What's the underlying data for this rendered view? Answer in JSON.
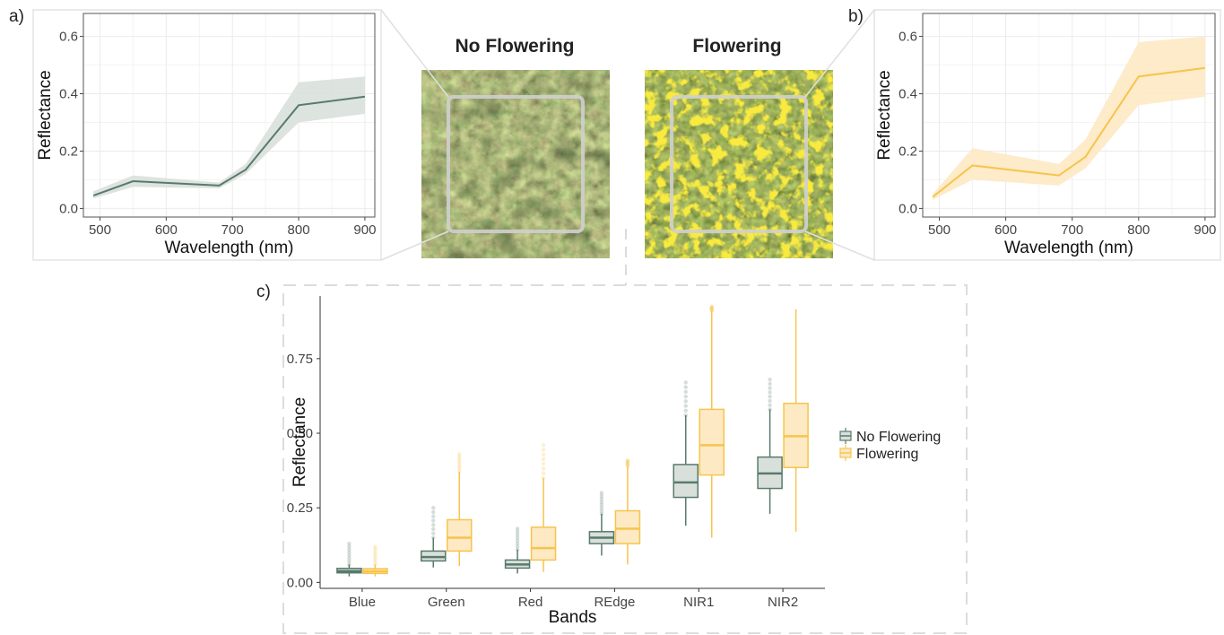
{
  "panels": {
    "a_label": "a)",
    "b_label": "b)",
    "c_label": "c)"
  },
  "photos": {
    "no_flowering_title": "No Flowering",
    "flowering_title": "Flowering"
  },
  "colors": {
    "no_flowering": "#587a6b",
    "no_flowering_fill": "#d9e0dc",
    "flowering": "#f7c44c",
    "flowering_fill": "#fde9c4",
    "grid": "#ebebeb",
    "frame": "#e4e4e4"
  },
  "chart_data": [
    {
      "id": "a",
      "type": "line",
      "xlabel": "Wavelength (nm)",
      "ylabel": "Reflectance",
      "xlim": [
        475,
        915
      ],
      "ylim": [
        -0.03,
        0.68
      ],
      "xticks": [
        500,
        600,
        700,
        800,
        900
      ],
      "xtick_labels": [
        "500",
        "600",
        "700",
        "800",
        "900"
      ],
      "yticks": [
        0.0,
        0.2,
        0.4,
        0.6
      ],
      "ytick_labels": [
        "0.0",
        "0.2",
        "0.4",
        "0.6"
      ],
      "grid": true,
      "series": [
        {
          "x": [
            490,
            550,
            680,
            720,
            800,
            900
          ],
          "y": [
            0.045,
            0.095,
            0.08,
            0.135,
            0.36,
            0.39
          ],
          "lower": [
            0.035,
            0.075,
            0.07,
            0.12,
            0.3,
            0.33
          ],
          "upper": [
            0.06,
            0.115,
            0.09,
            0.155,
            0.44,
            0.46
          ]
        }
      ]
    },
    {
      "id": "b",
      "type": "line",
      "xlabel": "Wavelength (nm)",
      "ylabel": "Reflectance",
      "xlim": [
        475,
        915
      ],
      "ylim": [
        -0.03,
        0.68
      ],
      "xticks": [
        500,
        600,
        700,
        800,
        900
      ],
      "xtick_labels": [
        "500",
        "600",
        "700",
        "800",
        "900"
      ],
      "yticks": [
        0.0,
        0.2,
        0.4,
        0.6
      ],
      "ytick_labels": [
        "0.0",
        "0.2",
        "0.4",
        "0.6"
      ],
      "grid": true,
      "series": [
        {
          "x": [
            490,
            550,
            680,
            720,
            800,
            900
          ],
          "y": [
            0.04,
            0.15,
            0.115,
            0.18,
            0.46,
            0.49
          ],
          "lower": [
            0.03,
            0.1,
            0.08,
            0.14,
            0.36,
            0.39
          ],
          "upper": [
            0.05,
            0.21,
            0.155,
            0.24,
            0.58,
            0.6
          ]
        }
      ]
    },
    {
      "id": "c",
      "type": "box",
      "xlabel": "Bands",
      "ylabel": "Reflectance",
      "categories": [
        "Blue",
        "Green",
        "Red",
        "REdge",
        "NIR1",
        "NIR2"
      ],
      "ylim": [
        -0.02,
        0.96
      ],
      "yticks": [
        0.0,
        0.25,
        0.5,
        0.75
      ],
      "ytick_labels": [
        "0.00",
        "0.25",
        "0.50",
        "0.75"
      ],
      "grid": false,
      "legend": {
        "placement": "right",
        "entries": [
          "No Flowering",
          "Flowering"
        ]
      },
      "series": [
        {
          "name": "No Flowering",
          "boxes": [
            {
              "min": 0.02,
              "q1": 0.032,
              "median": 0.038,
              "q3": 0.047,
              "max": 0.06,
              "outlier_max": 0.13
            },
            {
              "min": 0.05,
              "q1": 0.072,
              "median": 0.085,
              "q3": 0.105,
              "max": 0.15,
              "outlier_max": 0.25
            },
            {
              "min": 0.03,
              "q1": 0.048,
              "median": 0.06,
              "q3": 0.075,
              "max": 0.11,
              "outlier_max": 0.18
            },
            {
              "min": 0.09,
              "q1": 0.13,
              "median": 0.15,
              "q3": 0.17,
              "max": 0.23,
              "outlier_max": 0.3
            },
            {
              "min": 0.19,
              "q1": 0.285,
              "median": 0.335,
              "q3": 0.395,
              "max": 0.56,
              "outlier_max": 0.67
            },
            {
              "min": 0.23,
              "q1": 0.315,
              "median": 0.365,
              "q3": 0.42,
              "max": 0.58,
              "outlier_max": 0.68
            }
          ]
        },
        {
          "name": "Flowering",
          "boxes": [
            {
              "min": 0.02,
              "q1": 0.03,
              "median": 0.037,
              "q3": 0.046,
              "max": 0.06,
              "outlier_max": 0.12
            },
            {
              "min": 0.055,
              "q1": 0.105,
              "median": 0.15,
              "q3": 0.21,
              "max": 0.37,
              "outlier_max": 0.43
            },
            {
              "min": 0.035,
              "q1": 0.075,
              "median": 0.115,
              "q3": 0.185,
              "max": 0.35,
              "outlier_max": 0.46
            },
            {
              "min": 0.06,
              "q1": 0.13,
              "median": 0.18,
              "q3": 0.24,
              "max": 0.39,
              "outlier_max": 0.41
            },
            {
              "min": 0.15,
              "q1": 0.36,
              "median": 0.46,
              "q3": 0.58,
              "max": 0.91,
              "outlier_max": 0.925
            },
            {
              "min": 0.17,
              "q1": 0.385,
              "median": 0.49,
              "q3": 0.6,
              "max": 0.915,
              "outlier_max": 0.915
            }
          ]
        }
      ]
    }
  ]
}
